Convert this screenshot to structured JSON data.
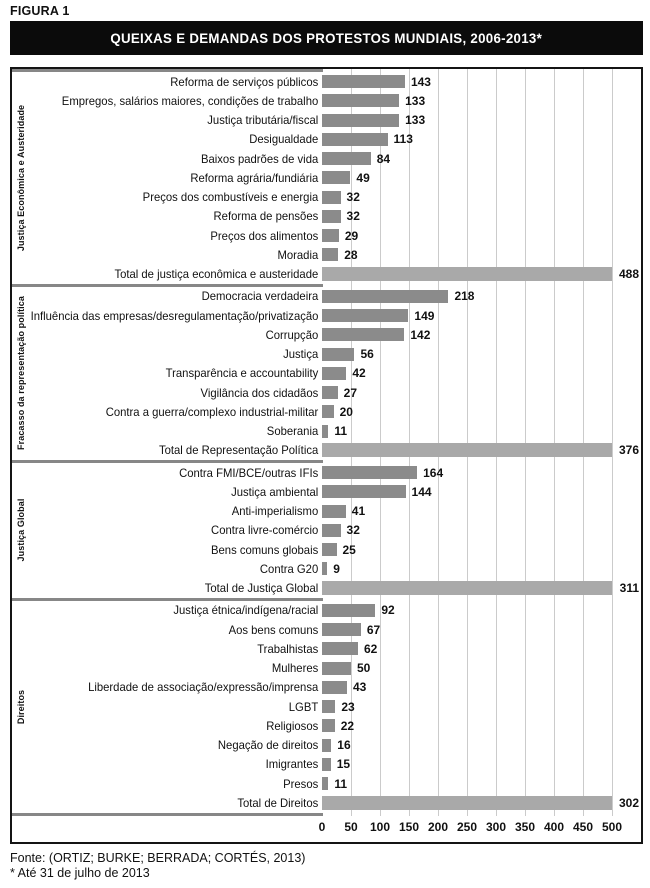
{
  "figure_label": "FIGURA 1",
  "title": "QUEIXAS E DEMANDAS DOS PROTESTOS MUNDIAIS, 2006-2013*",
  "footer": {
    "source": "Fonte: (ORTIZ; BURKE; BERRADA; CORTÉS, 2013)",
    "note": "* Até 31 de julho de 2013"
  },
  "chart_data": {
    "type": "bar",
    "orientation": "horizontal",
    "title": "QUEIXAS E DEMANDAS DOS PROTESTOS MUNDIAIS, 2006-2013*",
    "xlabel": "",
    "ylabel": "",
    "xlim": [
      0,
      500
    ],
    "x_ticks": [
      0,
      50,
      100,
      150,
      200,
      250,
      300,
      350,
      400,
      450,
      500
    ],
    "grid": true,
    "legend": false,
    "colors": {
      "bar": "#8b8b8b",
      "total_bar": "#a9a9a9",
      "gridline": "#cbcbcb",
      "separator": "#878787",
      "title_background": "#0b0b0b",
      "title_text": "#ffffff"
    },
    "groups": [
      {
        "name": "Justiça Econômica e Austeridade",
        "items": [
          {
            "label": "Reforma de serviços públicos",
            "value": 143
          },
          {
            "label": "Empregos, salários maiores, condições de trabalho",
            "value": 133
          },
          {
            "label": "Justiça tributária/fiscal",
            "value": 133
          },
          {
            "label": "Desigualdade",
            "value": 113
          },
          {
            "label": "Baixos padrões de vida",
            "value": 84
          },
          {
            "label": "Reforma agrária/fundiária",
            "value": 49
          },
          {
            "label": "Preços dos combustíveis e energia",
            "value": 32
          },
          {
            "label": "Reforma de pensões",
            "value": 32
          },
          {
            "label": "Preços dos alimentos",
            "value": 29
          },
          {
            "label": "Moradia",
            "value": 28
          }
        ],
        "total": {
          "label": "Total de justiça econômica e austeridade",
          "value": 488
        }
      },
      {
        "name": "Fracasso da representação política",
        "items": [
          {
            "label": "Democracia verdadeira",
            "value": 218
          },
          {
            "label": "Influência das empresas/desregulamentação/privatização",
            "value": 149
          },
          {
            "label": "Corrupção",
            "value": 142
          },
          {
            "label": "Justiça",
            "value": 56
          },
          {
            "label": "Transparência e accountability",
            "value": 42
          },
          {
            "label": "Vigilância dos cidadãos",
            "value": 27
          },
          {
            "label": "Contra a guerra/complexo industrial-militar",
            "value": 20
          },
          {
            "label": "Soberania",
            "value": 11
          }
        ],
        "total": {
          "label": "Total de Representação Política",
          "value": 376
        }
      },
      {
        "name": "Justiça Global",
        "items": [
          {
            "label": "Contra FMI/BCE/outras IFIs",
            "value": 164
          },
          {
            "label": "Justiça ambiental",
            "value": 144
          },
          {
            "label": "Anti-imperialismo",
            "value": 41
          },
          {
            "label": "Contra livre-comércio",
            "value": 32
          },
          {
            "label": "Bens comuns globais",
            "value": 25
          },
          {
            "label": "Contra G20",
            "value": 9
          }
        ],
        "total": {
          "label": "Total de Justiça Global",
          "value": 311
        }
      },
      {
        "name": "Direitos",
        "items": [
          {
            "label": "Justiça étnica/indígena/racial",
            "value": 92
          },
          {
            "label": "Aos bens comuns",
            "value": 67
          },
          {
            "label": "Trabalhistas",
            "value": 62
          },
          {
            "label": "Mulheres",
            "value": 50
          },
          {
            "label": "Liberdade de associação/expressão/imprensa",
            "value": 43
          },
          {
            "label": "LGBT",
            "value": 23
          },
          {
            "label": "Religiosos",
            "value": 22
          },
          {
            "label": "Negação de direitos",
            "value": 16
          },
          {
            "label": "Imigrantes",
            "value": 15
          },
          {
            "label": "Presos",
            "value": 11
          }
        ],
        "total": {
          "label": "Total de Direitos",
          "value": 302
        }
      }
    ]
  }
}
